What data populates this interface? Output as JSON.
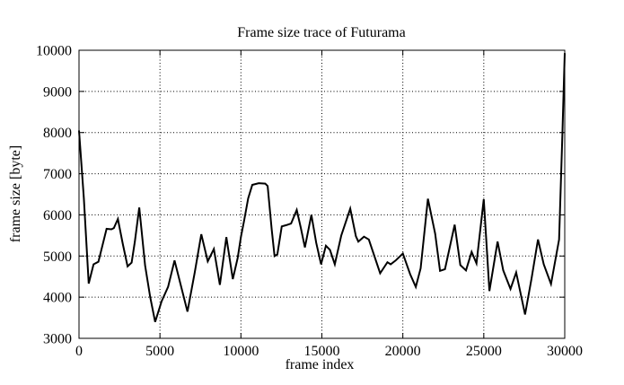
{
  "title": "Frame size trace of Futurama",
  "chart_data": {
    "type": "line",
    "title": "Frame size trace of Futurama",
    "xlabel": "frame index",
    "ylabel": "frame size [byte]",
    "xlim": [
      0,
      30000
    ],
    "ylim": [
      3000,
      10000
    ],
    "x_ticks": [
      0,
      5000,
      10000,
      15000,
      20000,
      25000,
      30000
    ],
    "y_ticks": [
      3000,
      4000,
      5000,
      6000,
      7000,
      8000,
      9000,
      10000
    ],
    "grid": "dotted",
    "legend": "none",
    "line_color": "#000000",
    "background_color": "#ffffff",
    "series": [
      {
        "name": "frame size",
        "points": [
          [
            0,
            8050
          ],
          [
            300,
            6400
          ],
          [
            600,
            4330
          ],
          [
            900,
            4800
          ],
          [
            1200,
            4860
          ],
          [
            1700,
            5660
          ],
          [
            2000,
            5650
          ],
          [
            2150,
            5680
          ],
          [
            2400,
            5900
          ],
          [
            2700,
            5300
          ],
          [
            3000,
            4750
          ],
          [
            3250,
            4840
          ],
          [
            3450,
            5350
          ],
          [
            3720,
            6180
          ],
          [
            4080,
            4770
          ],
          [
            4400,
            4000
          ],
          [
            4700,
            3400
          ],
          [
            5100,
            3900
          ],
          [
            5500,
            4250
          ],
          [
            5900,
            4890
          ],
          [
            6300,
            4270
          ],
          [
            6700,
            3650
          ],
          [
            7150,
            4600
          ],
          [
            7550,
            5530
          ],
          [
            7950,
            4870
          ],
          [
            8330,
            5170
          ],
          [
            8700,
            4300
          ],
          [
            9100,
            5460
          ],
          [
            9500,
            4440
          ],
          [
            9800,
            4950
          ],
          [
            10000,
            5460
          ],
          [
            10200,
            5860
          ],
          [
            10450,
            6400
          ],
          [
            10700,
            6730
          ],
          [
            11100,
            6770
          ],
          [
            11500,
            6760
          ],
          [
            11650,
            6700
          ],
          [
            11900,
            5650
          ],
          [
            12080,
            5000
          ],
          [
            12250,
            5040
          ],
          [
            12520,
            5720
          ],
          [
            12800,
            5750
          ],
          [
            13100,
            5790
          ],
          [
            13450,
            6120
          ],
          [
            13700,
            5680
          ],
          [
            13950,
            5210
          ],
          [
            14350,
            6000
          ],
          [
            14650,
            5320
          ],
          [
            14950,
            4800
          ],
          [
            15250,
            5250
          ],
          [
            15500,
            5150
          ],
          [
            15800,
            4800
          ],
          [
            16200,
            5500
          ],
          [
            16750,
            6150
          ],
          [
            17100,
            5480
          ],
          [
            17250,
            5350
          ],
          [
            17600,
            5470
          ],
          [
            17900,
            5400
          ],
          [
            18600,
            4580
          ],
          [
            19050,
            4850
          ],
          [
            19250,
            4800
          ],
          [
            19550,
            4890
          ],
          [
            20000,
            5060
          ],
          [
            20450,
            4560
          ],
          [
            20800,
            4250
          ],
          [
            21100,
            4700
          ],
          [
            21550,
            6390
          ],
          [
            22000,
            5540
          ],
          [
            22300,
            4640
          ],
          [
            22600,
            4680
          ],
          [
            23200,
            5760
          ],
          [
            23550,
            4780
          ],
          [
            23900,
            4650
          ],
          [
            24250,
            5100
          ],
          [
            24550,
            4820
          ],
          [
            25000,
            6380
          ],
          [
            25350,
            4150
          ],
          [
            25850,
            5350
          ],
          [
            26200,
            4650
          ],
          [
            26650,
            4200
          ],
          [
            27000,
            4600
          ],
          [
            27550,
            3580
          ],
          [
            27950,
            4450
          ],
          [
            28350,
            5400
          ],
          [
            28700,
            4800
          ],
          [
            29150,
            4320
          ],
          [
            29650,
            5400
          ],
          [
            29850,
            7900
          ],
          [
            30000,
            9930
          ]
        ]
      }
    ]
  }
}
